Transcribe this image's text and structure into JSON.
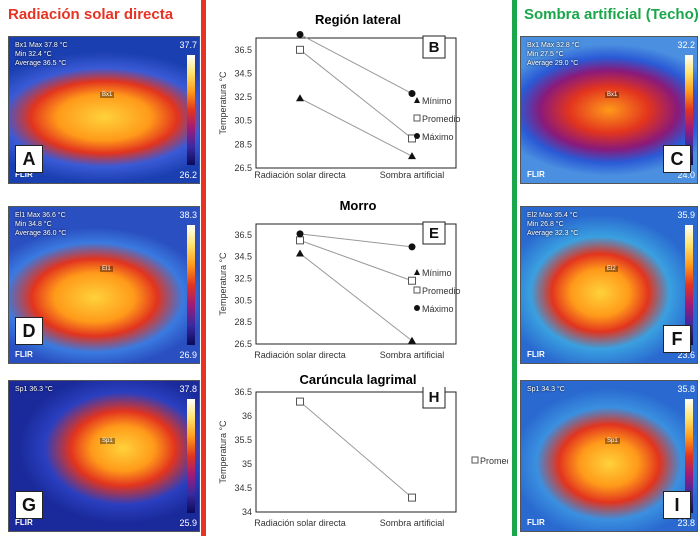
{
  "headers": {
    "left": "Radiación solar directa",
    "right": "Sombra artificial (Techo)"
  },
  "colors": {
    "left_divider": "#e63323",
    "right_divider": "#1aa64a",
    "left_header": "#e63323",
    "right_header": "#1aa64a"
  },
  "thermal_images": [
    {
      "letter": "A",
      "scale_max": "37.7",
      "scale_min": "26.2",
      "flir": "FLIR",
      "region": "Bx1",
      "readouts": [
        "Bx1   Max  37.8 °C",
        "       Min  32.4 °C",
        "   Average  36.5 °C"
      ]
    },
    {
      "letter": "C",
      "scale_max": "32.2",
      "scale_min": "24.0",
      "flir": "FLIR",
      "region": "Bx1",
      "readouts": [
        "Bx1   Max  32.8 °C",
        "       Min  27.5 °C",
        "   Average  29.0 °C"
      ]
    },
    {
      "letter": "D",
      "scale_max": "38.3",
      "scale_min": "26.9",
      "flir": "FLIR",
      "region": "El1",
      "readouts": [
        "El1   Max  36.6 °C",
        "       Min  34.8 °C",
        "   Average  36.0 °C"
      ]
    },
    {
      "letter": "F",
      "scale_max": "35.9",
      "scale_min": "23.6",
      "flir": "FLIR",
      "region": "El2",
      "readouts": [
        "El2   Max  35.4 °C",
        "       Min  26.8 °C",
        "   Average  32.3 °C"
      ]
    },
    {
      "letter": "G",
      "scale_max": "37.8",
      "scale_min": "25.9",
      "flir": "FLIR",
      "region": "Sp1",
      "readouts": [
        "Sp1   36.3 °C"
      ]
    },
    {
      "letter": "I",
      "scale_max": "35.8",
      "scale_min": "23.8",
      "flir": "FLIR",
      "region": "Sp1",
      "readouts": [
        "Sp1   34.3 °C"
      ]
    }
  ],
  "chart_data": [
    {
      "type": "line",
      "title": "Región lateral",
      "panel_letter": "B",
      "ylabel": "Temperatura °C",
      "categories": [
        "Radiación solar directa",
        "Sombra artificial"
      ],
      "ylim": [
        26.5,
        37.5
      ],
      "yticks": [
        "26.5",
        "28.5",
        "30.5",
        "32.5",
        "34.5",
        "36.5"
      ],
      "series": [
        {
          "name": "Mínimo",
          "marker": "triangle",
          "values": [
            32.4,
            27.5
          ]
        },
        {
          "name": "Promedio",
          "marker": "square",
          "values": [
            36.5,
            29.0
          ]
        },
        {
          "name": "Máximo",
          "marker": "circle",
          "values": [
            37.8,
            32.8
          ]
        }
      ]
    },
    {
      "type": "line",
      "title": "Morro",
      "panel_letter": "E",
      "ylabel": "Temperatura °C",
      "categories": [
        "Radiación solar directa",
        "Sombra artificial"
      ],
      "ylim": [
        26.5,
        37.5
      ],
      "yticks": [
        "26.5",
        "28.5",
        "30.5",
        "32.5",
        "34.5",
        "36.5"
      ],
      "series": [
        {
          "name": "Mínimo",
          "marker": "triangle",
          "values": [
            34.8,
            26.8
          ]
        },
        {
          "name": "Promedio",
          "marker": "square",
          "values": [
            36.0,
            32.3
          ]
        },
        {
          "name": "Máximo",
          "marker": "circle",
          "values": [
            36.6,
            35.4
          ]
        }
      ]
    },
    {
      "type": "line",
      "title": "Carúncula lagrimal",
      "panel_letter": "H",
      "ylabel": "Temperatura °C",
      "categories": [
        "Radiación solar directa",
        "Sombra artificial"
      ],
      "ylim": [
        34,
        36.5
      ],
      "yticks": [
        "34",
        "34.5",
        "35",
        "35.5",
        "36",
        "36.5"
      ],
      "series": [
        {
          "name": "Promedio",
          "marker": "square",
          "values": [
            36.3,
            34.3
          ]
        }
      ]
    }
  ]
}
